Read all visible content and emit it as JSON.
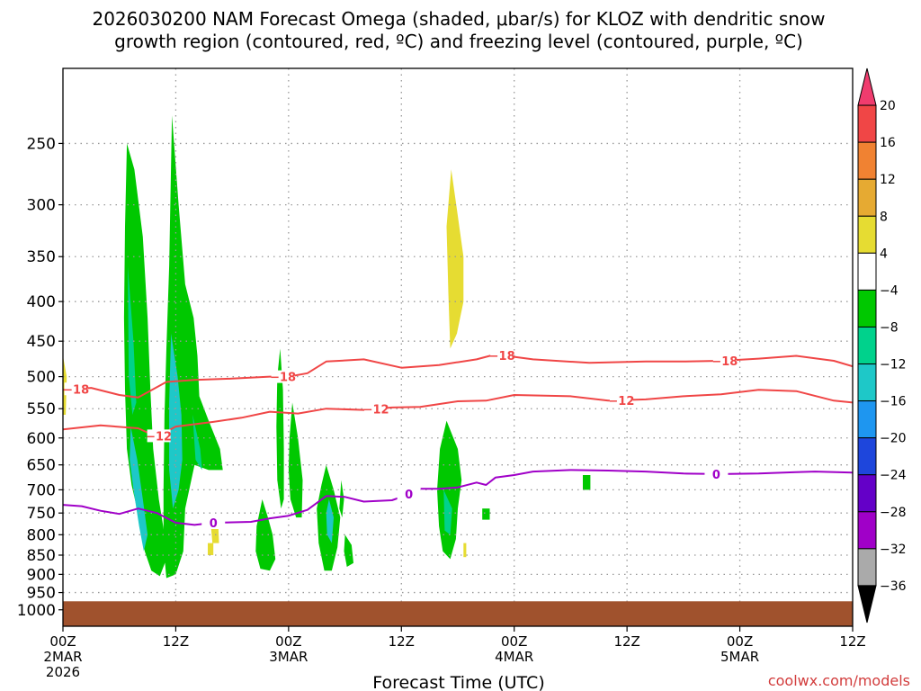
{
  "title_line1": "2026030200 NAM Forecast Omega (shaded, μbar/s) for KLOZ with dendritic snow",
  "title_line2": "growth region (contoured, red, ºC) and freezing level (contoured, purple, ºC)",
  "xlabel": "Forecast Time (UTC)",
  "credit": "coolwx.com/models",
  "chart_data": {
    "type": "heatmap",
    "x_unit": "forecast hour from 2026-03-02 00Z",
    "xlim": [
      0,
      84
    ],
    "y_unit": "mb",
    "ylim": [
      1050,
      200
    ],
    "y_ticks": [
      250,
      300,
      350,
      400,
      450,
      500,
      550,
      600,
      650,
      700,
      750,
      800,
      850,
      900,
      950,
      1000
    ],
    "x_ticks": [
      {
        "x": 0,
        "l1": "00Z",
        "l2": "2MAR",
        "l3": "2026"
      },
      {
        "x": 12,
        "l1": "12Z",
        "l2": "",
        "l3": ""
      },
      {
        "x": 24,
        "l1": "00Z",
        "l2": "3MAR",
        "l3": ""
      },
      {
        "x": 36,
        "l1": "12Z",
        "l2": "",
        "l3": ""
      },
      {
        "x": 48,
        "l1": "00Z",
        "l2": "4MAR",
        "l3": ""
      },
      {
        "x": 60,
        "l1": "12Z",
        "l2": "",
        "l3": ""
      },
      {
        "x": 72,
        "l1": "00Z",
        "l2": "5MAR",
        "l3": ""
      },
      {
        "x": 84,
        "l1": "12Z",
        "l2": "",
        "l3": ""
      }
    ],
    "grid": true,
    "colorbar": {
      "labels": [
        "20",
        "16",
        "12",
        "8",
        "4",
        "−4",
        "−8",
        "−12",
        "−16",
        "−20",
        "−24",
        "−28",
        "−32",
        "−36"
      ],
      "colors": [
        "#f03c6e",
        "#f04646",
        "#f08232",
        "#e6aa32",
        "#e6dc32",
        "#ffffff",
        "#00c800",
        "#00d28c",
        "#1ec8c8",
        "#1e96f0",
        "#1e46dc",
        "#6400c8",
        "#a000c8",
        "#aaaaaa",
        "#000000"
      ]
    },
    "omega_regions": [
      {
        "color": "#00c800",
        "points": [
          [
            6.8,
            250
          ],
          [
            7.6,
            270
          ],
          [
            8.5,
            330
          ],
          [
            9.0,
            420
          ],
          [
            9.3,
            520
          ],
          [
            9.6,
            620
          ],
          [
            10.2,
            720
          ],
          [
            10.8,
            800
          ],
          [
            11.0,
            860
          ],
          [
            10.3,
            905
          ],
          [
            9.4,
            890
          ],
          [
            8.7,
            840
          ],
          [
            8.1,
            760
          ],
          [
            7.3,
            690
          ],
          [
            6.8,
            620
          ],
          [
            6.6,
            520
          ],
          [
            6.5,
            420
          ],
          [
            6.6,
            320
          ]
        ]
      },
      {
        "color": "#00c800",
        "points": [
          [
            11.6,
            230
          ],
          [
            12.3,
            300
          ],
          [
            13.0,
            380
          ],
          [
            13.9,
            420
          ],
          [
            14.3,
            470
          ],
          [
            14.5,
            530
          ],
          [
            15.5,
            570
          ],
          [
            16.7,
            620
          ],
          [
            17.0,
            660
          ],
          [
            15.5,
            660
          ],
          [
            14.0,
            650
          ],
          [
            13.0,
            740
          ],
          [
            12.8,
            840
          ],
          [
            12.0,
            900
          ],
          [
            11.0,
            910
          ],
          [
            10.7,
            830
          ],
          [
            10.7,
            700
          ],
          [
            10.8,
            560
          ],
          [
            11.0,
            460
          ],
          [
            11.3,
            360
          ]
        ]
      },
      {
        "color": "#00c800",
        "points": [
          [
            21.2,
            720
          ],
          [
            21.8,
            760
          ],
          [
            22.3,
            800
          ],
          [
            22.6,
            860
          ],
          [
            22.0,
            890
          ],
          [
            21.0,
            885
          ],
          [
            20.5,
            840
          ],
          [
            20.6,
            780
          ]
        ]
      },
      {
        "color": "#00c800",
        "points": [
          [
            23.1,
            460
          ],
          [
            23.4,
            520
          ],
          [
            23.5,
            620
          ],
          [
            23.5,
            720
          ],
          [
            23.2,
            740
          ],
          [
            22.8,
            680
          ],
          [
            22.7,
            580
          ],
          [
            22.8,
            500
          ]
        ]
      },
      {
        "color": "#00c800",
        "points": [
          [
            24.4,
            540
          ],
          [
            25.0,
            600
          ],
          [
            25.5,
            680
          ],
          [
            25.4,
            760
          ],
          [
            24.8,
            760
          ],
          [
            24.2,
            720
          ],
          [
            24.0,
            660
          ],
          [
            24.1,
            600
          ]
        ]
      },
      {
        "color": "#00c800",
        "points": [
          [
            28.0,
            650
          ],
          [
            28.8,
            700
          ],
          [
            29.5,
            760
          ],
          [
            29.2,
            830
          ],
          [
            28.6,
            890
          ],
          [
            27.8,
            890
          ],
          [
            27.2,
            820
          ],
          [
            27.0,
            740
          ],
          [
            27.5,
            690
          ]
        ]
      },
      {
        "color": "#00c800",
        "points": [
          [
            29.6,
            680
          ],
          [
            29.9,
            720
          ],
          [
            29.7,
            760
          ],
          [
            29.4,
            740
          ]
        ]
      },
      {
        "color": "#00c800",
        "points": [
          [
            30.0,
            800
          ],
          [
            30.7,
            825
          ],
          [
            30.9,
            870
          ],
          [
            30.2,
            880
          ],
          [
            29.9,
            840
          ]
        ]
      },
      {
        "color": "#00c800",
        "points": [
          [
            40.8,
            570
          ],
          [
            42.0,
            620
          ],
          [
            42.4,
            680
          ],
          [
            42.0,
            740
          ],
          [
            41.8,
            810
          ],
          [
            41.2,
            860
          ],
          [
            40.4,
            840
          ],
          [
            40.0,
            780
          ],
          [
            39.8,
            700
          ],
          [
            40.1,
            620
          ]
        ]
      },
      {
        "color": "#00c800",
        "points": [
          [
            44.6,
            740
          ],
          [
            45.4,
            740
          ],
          [
            45.4,
            765
          ],
          [
            44.6,
            765
          ]
        ]
      },
      {
        "color": "#00c800",
        "points": [
          [
            55.3,
            670
          ],
          [
            56.1,
            670
          ],
          [
            56.1,
            700
          ],
          [
            55.3,
            700
          ]
        ]
      },
      {
        "color": "#1ec8c8",
        "points": [
          [
            7.2,
            580
          ],
          [
            7.9,
            640
          ],
          [
            8.5,
            720
          ],
          [
            9.0,
            800
          ],
          [
            8.6,
            840
          ],
          [
            8.1,
            780
          ],
          [
            7.5,
            700
          ],
          [
            7.1,
            640
          ]
        ]
      },
      {
        "color": "#00d28c",
        "points": [
          [
            6.9,
            360
          ],
          [
            7.5,
            450
          ],
          [
            7.8,
            540
          ],
          [
            7.4,
            560
          ],
          [
            7.0,
            500
          ]
        ]
      },
      {
        "color": "#1ec8c8",
        "points": [
          [
            11.5,
            440
          ],
          [
            12.2,
            500
          ],
          [
            12.6,
            560
          ],
          [
            12.7,
            640
          ],
          [
            12.3,
            700
          ],
          [
            11.7,
            740
          ],
          [
            11.3,
            660
          ],
          [
            11.3,
            540
          ]
        ]
      },
      {
        "color": "#00d28c",
        "points": [
          [
            13.8,
            560
          ],
          [
            14.6,
            620
          ],
          [
            14.8,
            660
          ],
          [
            14.1,
            640
          ]
        ]
      },
      {
        "color": "#1ec8c8",
        "points": [
          [
            28.3,
            720
          ],
          [
            28.8,
            760
          ],
          [
            28.6,
            820
          ],
          [
            28.1,
            800
          ],
          [
            28.0,
            750
          ]
        ]
      },
      {
        "color": "#00d28c",
        "points": [
          [
            40.5,
            700
          ],
          [
            41.4,
            740
          ],
          [
            41.2,
            800
          ],
          [
            40.6,
            790
          ]
        ]
      },
      {
        "color": "#e6dc32",
        "points": [
          [
            41.3,
            270
          ],
          [
            42.0,
            310
          ],
          [
            42.6,
            350
          ],
          [
            42.6,
            400
          ],
          [
            41.9,
            440
          ],
          [
            41.2,
            460
          ],
          [
            41.0,
            390
          ],
          [
            40.8,
            320
          ]
        ]
      },
      {
        "color": "#e6dc32",
        "points": [
          [
            0.0,
            470
          ],
          [
            0.4,
            500
          ],
          [
            0.3,
            560
          ],
          [
            0.0,
            560
          ]
        ]
      },
      {
        "color": "#e6dc32",
        "points": [
          [
            15.7,
            770
          ],
          [
            16.5,
            770
          ],
          [
            16.6,
            820
          ],
          [
            15.9,
            820
          ]
        ]
      },
      {
        "color": "#e6dc32",
        "points": [
          [
            15.4,
            820
          ],
          [
            16.0,
            820
          ],
          [
            16.0,
            850
          ],
          [
            15.4,
            850
          ]
        ]
      },
      {
        "color": "#e6dc32",
        "points": [
          [
            42.6,
            820
          ],
          [
            42.9,
            820
          ],
          [
            42.9,
            855
          ],
          [
            42.6,
            855
          ]
        ]
      }
    ],
    "contours": [
      {
        "color": "#f04646",
        "label": "−18",
        "label_x": [
          1.4,
          23.4,
          46.7,
          70.4
        ],
        "points": [
          [
            0,
            520
          ],
          [
            3,
            517
          ],
          [
            6,
            528
          ],
          [
            8,
            532
          ],
          [
            11,
            508
          ],
          [
            14,
            505
          ],
          [
            18,
            503
          ],
          [
            22,
            500
          ],
          [
            24,
            500
          ],
          [
            26,
            495
          ],
          [
            28,
            478
          ],
          [
            32,
            475
          ],
          [
            36,
            487
          ],
          [
            40,
            483
          ],
          [
            44,
            475
          ],
          [
            46,
            468
          ],
          [
            50,
            475
          ],
          [
            56,
            480
          ],
          [
            62,
            478
          ],
          [
            66,
            478
          ],
          [
            70,
            477
          ],
          [
            74,
            474
          ],
          [
            78,
            470
          ],
          [
            82,
            477
          ],
          [
            84,
            485
          ]
        ]
      },
      {
        "color": "#f04646",
        "label": "−12",
        "label_x": [
          10.2,
          33.3,
          59.4
        ],
        "points": [
          [
            0,
            585
          ],
          [
            4,
            578
          ],
          [
            8,
            583
          ],
          [
            10,
            598
          ],
          [
            12,
            580
          ],
          [
            16,
            572
          ],
          [
            19,
            565
          ],
          [
            22,
            555
          ],
          [
            25,
            558
          ],
          [
            28,
            550
          ],
          [
            32,
            552
          ],
          [
            35,
            548
          ],
          [
            38,
            547
          ],
          [
            42,
            538
          ],
          [
            45,
            537
          ],
          [
            48,
            528
          ],
          [
            54,
            530
          ],
          [
            58,
            537
          ],
          [
            62,
            535
          ],
          [
            66,
            530
          ],
          [
            70,
            527
          ],
          [
            74,
            520
          ],
          [
            78,
            522
          ],
          [
            82,
            537
          ],
          [
            84,
            540
          ]
        ]
      },
      {
        "color": "#a000c8",
        "label": "0",
        "label_x": [
          16.0,
          36.8,
          69.5
        ],
        "points": [
          [
            0,
            732
          ],
          [
            2,
            735
          ],
          [
            4,
            745
          ],
          [
            6,
            752
          ],
          [
            8,
            740
          ],
          [
            10,
            750
          ],
          [
            12,
            772
          ],
          [
            14,
            777
          ],
          [
            16,
            772
          ],
          [
            20,
            770
          ],
          [
            22,
            762
          ],
          [
            24,
            756
          ],
          [
            26,
            743
          ],
          [
            28,
            713
          ],
          [
            30,
            715
          ],
          [
            32,
            725
          ],
          [
            35,
            722
          ],
          [
            36,
            715
          ],
          [
            38,
            698
          ],
          [
            40,
            698
          ],
          [
            42,
            695
          ],
          [
            44,
            685
          ],
          [
            45,
            690
          ],
          [
            46,
            675
          ],
          [
            48,
            670
          ],
          [
            50,
            663
          ],
          [
            54,
            660
          ],
          [
            58,
            661
          ],
          [
            62,
            663
          ],
          [
            66,
            667
          ],
          [
            70,
            668
          ],
          [
            74,
            667
          ],
          [
            78,
            664
          ],
          [
            80,
            663
          ],
          [
            84,
            665
          ]
        ]
      }
    ],
    "terrain": {
      "color": "#a0522d",
      "top": 975
    }
  }
}
